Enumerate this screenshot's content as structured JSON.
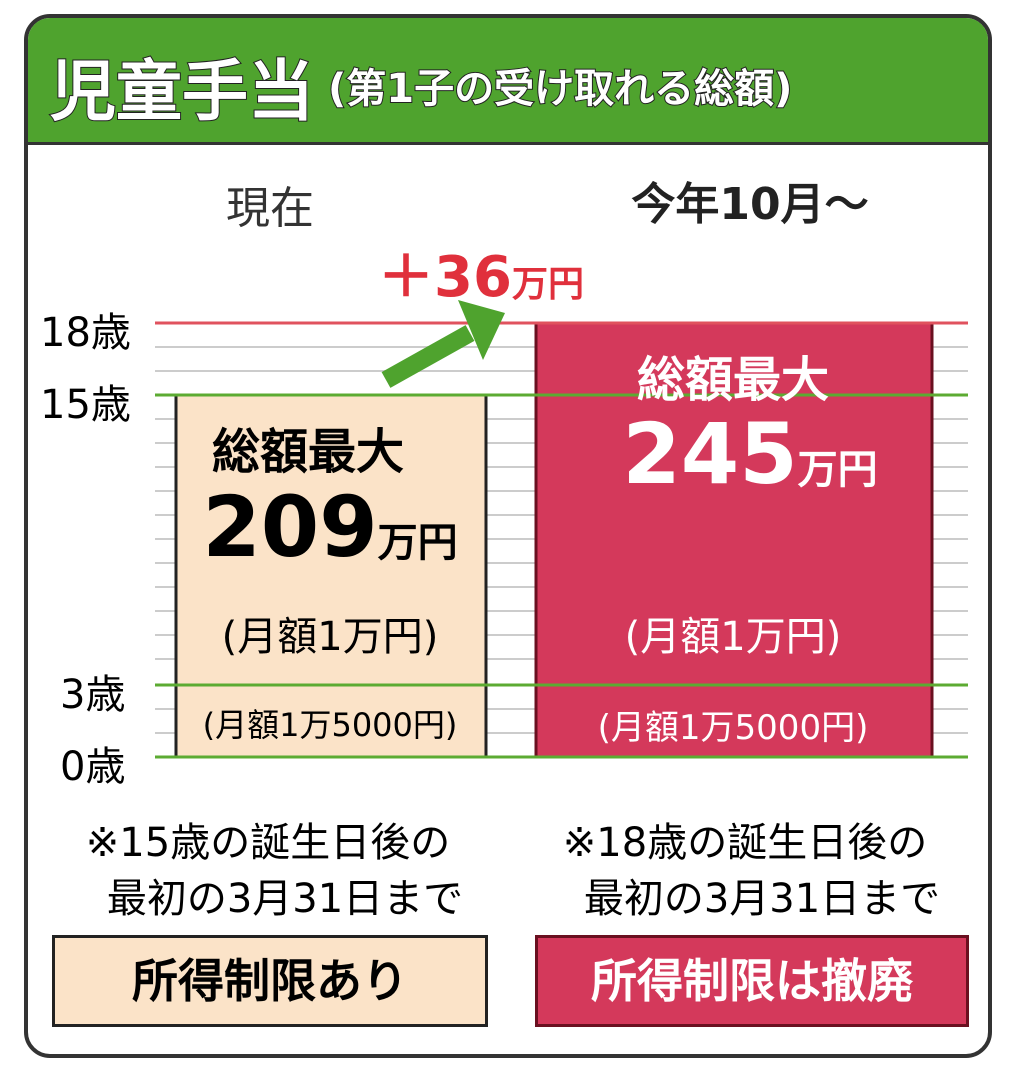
{
  "header": {
    "title": "児童手当",
    "subtitle": "(第1子の受け取れる総額)"
  },
  "axis": {
    "labels": [
      "18歳",
      "15歳",
      "3歳",
      "0歳"
    ]
  },
  "increase": {
    "value": "＋36",
    "unit": "万円"
  },
  "columns": [
    {
      "heading": "現在",
      "total_label": "総額最大",
      "amount": "209",
      "unit": "万円",
      "monthly_upper": "(月額1万円)",
      "monthly_lower": "(月額1万5000円)",
      "note_lines": [
        "※15歳の誕生日後の",
        "最初の3月31日まで"
      ],
      "income_limit": "所得制限あり"
    },
    {
      "heading": "今年10月〜",
      "total_label": "総額最大",
      "amount": "245",
      "unit": "万円",
      "monthly_upper": "(月額1万円)",
      "monthly_lower": "(月額1万5000円)",
      "note_lines": [
        "※18歳の誕生日後の",
        "最初の3月31日まで"
      ],
      "income_limit": "所得制限は撤廃"
    }
  ]
}
